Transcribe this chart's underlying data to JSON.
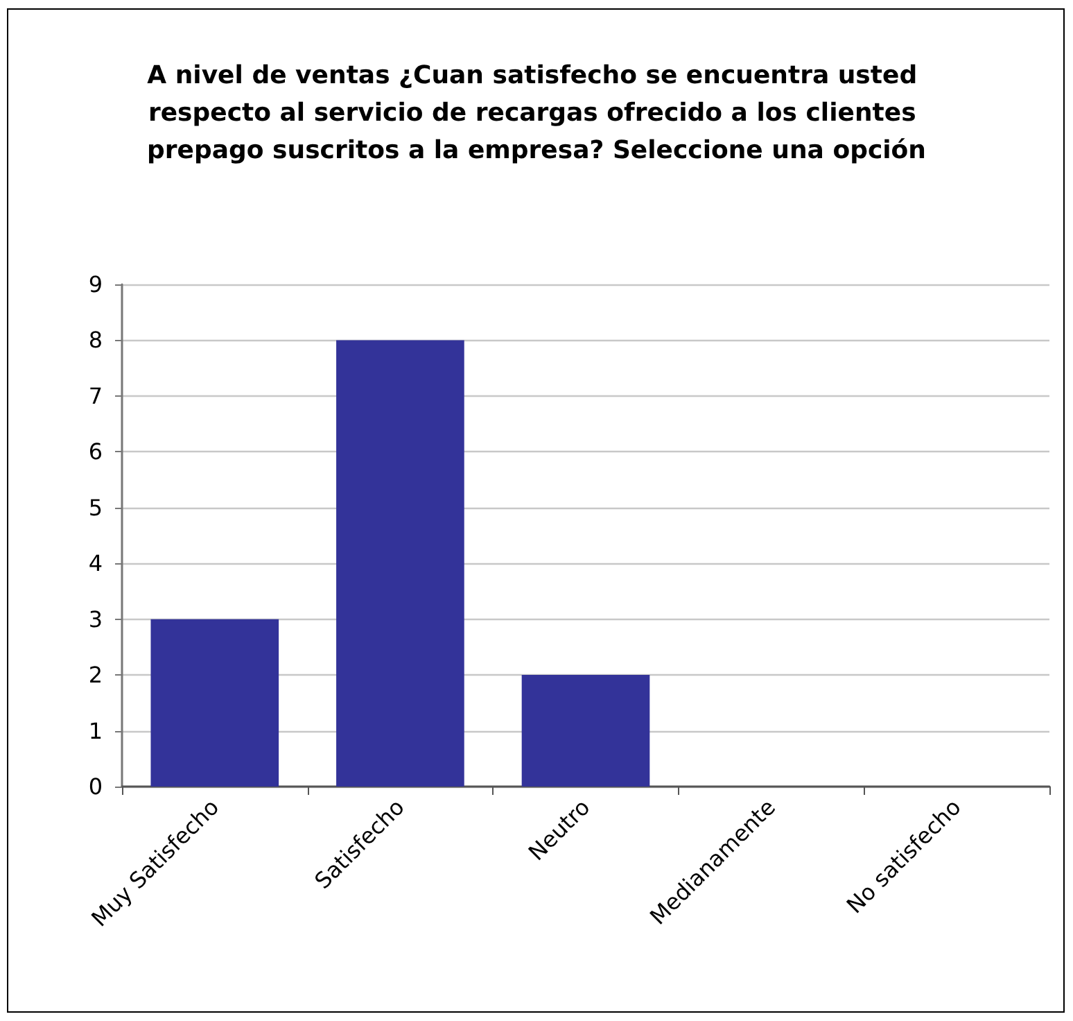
{
  "chart_data": {
    "type": "bar",
    "title": "A nivel de ventas ¿Cuan satisfecho se encuentra usted respecto al servicio de recargas ofrecido a los clientes prepago suscritos a la empresa? Seleccione una opción",
    "categories": [
      "Muy Satisfecho",
      "Satisfecho",
      "Neutro",
      "Medianamente",
      "No satisfecho"
    ],
    "values": [
      3,
      8,
      2,
      0,
      0
    ],
    "color": "#333399",
    "ylim": [
      0,
      9
    ],
    "yticks": [
      0,
      1,
      2,
      3,
      4,
      5,
      6,
      7,
      8,
      9
    ],
    "grid": "y"
  }
}
